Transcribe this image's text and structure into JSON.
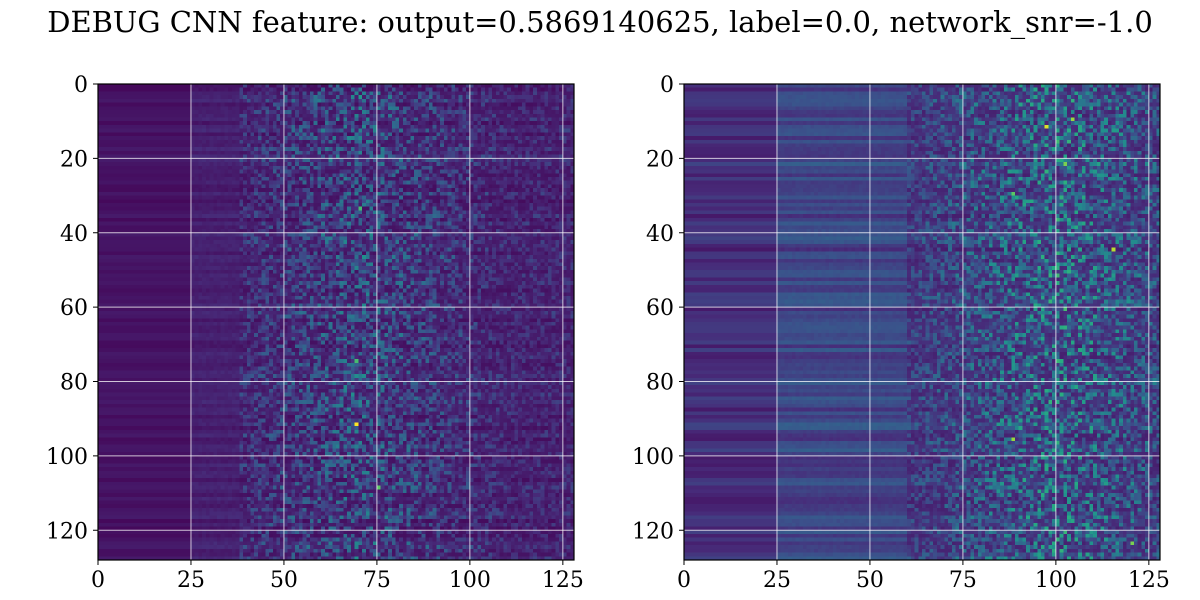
{
  "title": "DEBUG CNN feature: output=0.5869140625, label=0.0, network_snr=-1.0",
  "chart_data": [
    {
      "type": "heatmap",
      "title": "",
      "xlabel": "",
      "ylabel": "",
      "rows": 128,
      "cols": 128,
      "xlim": [
        0,
        128
      ],
      "ylim": [
        128,
        0
      ],
      "xticks": [
        0,
        25,
        50,
        75,
        100,
        125
      ],
      "yticks": [
        0,
        20,
        40,
        60,
        80,
        100,
        120
      ],
      "grid": true,
      "colormap": "viridis",
      "pattern": {
        "dark_cols_end": 25,
        "low_activity_cols_end": 50,
        "noise_start_col": 38,
        "peak_col": 70,
        "base_value": 0.06,
        "noise_value": 0.28,
        "hot_pixels": [
          [
            91,
            69,
            1.0
          ],
          [
            108,
            75,
            0.75
          ],
          [
            74,
            69,
            0.7
          ],
          [
            33,
            70,
            0.7
          ],
          [
            3,
            70,
            0.55
          ]
        ]
      }
    },
    {
      "type": "heatmap",
      "title": "",
      "xlabel": "",
      "ylabel": "",
      "rows": 128,
      "cols": 128,
      "xlim": [
        0,
        128
      ],
      "ylim": [
        128,
        0
      ],
      "xticks": [
        0,
        25,
        50,
        75,
        100,
        125
      ],
      "yticks": [
        0,
        20,
        40,
        60,
        80,
        100,
        120
      ],
      "grid": true,
      "colormap": "viridis",
      "pattern": {
        "dark_cols_end": 25,
        "low_activity_cols_end": 50,
        "noise_start_col": 60,
        "peak_col": 100,
        "base_value": 0.16,
        "noise_value": 0.38,
        "hot_pixels": [
          [
            11,
            97,
            0.95
          ],
          [
            9,
            104,
            0.85
          ],
          [
            21,
            102,
            0.8
          ],
          [
            44,
            115,
            0.9
          ],
          [
            95,
            88,
            0.85
          ],
          [
            123,
            120,
            0.8
          ],
          [
            29,
            88,
            0.75
          ],
          [
            60,
            102,
            0.7
          ]
        ]
      }
    }
  ],
  "colors": {
    "grid": "#ffffff",
    "axis": "#000000",
    "background": "#ffffff"
  }
}
